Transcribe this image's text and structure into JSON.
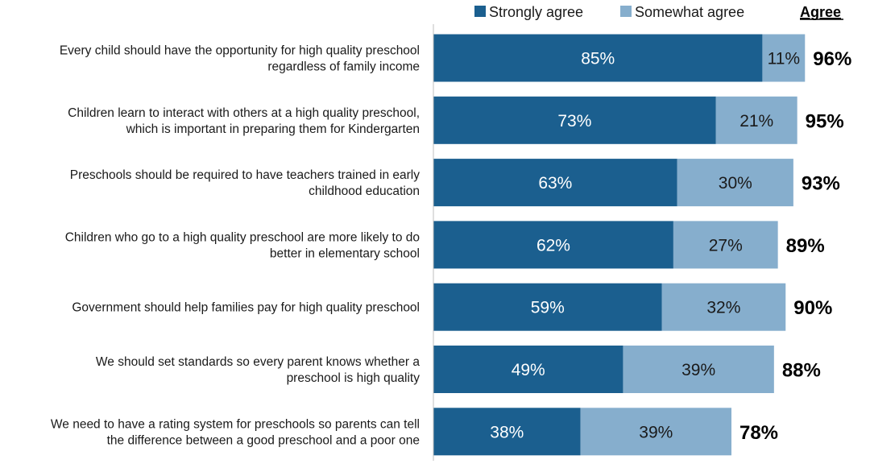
{
  "chart_data": {
    "type": "bar",
    "orientation": "horizontal",
    "stacked": true,
    "categories": [
      [
        "Every child should have the opportunity for high quality preschool",
        "regardless of family income"
      ],
      [
        "Children learn to interact with others at a high quality preschool,",
        "which is important in preparing them for Kindergarten"
      ],
      [
        "Preschools should be required to have teachers trained in early",
        "childhood education"
      ],
      [
        "Children who go to a high quality preschool are more likely to do",
        "better in elementary school"
      ],
      [
        "Government should help families pay for high quality preschool"
      ],
      [
        "We should set standards so every parent knows whether a",
        "preschool is high quality"
      ],
      [
        "We need to have a rating system for preschools so parents can tell",
        "the difference between a good preschool and a poor one"
      ]
    ],
    "series": [
      {
        "name": "Strongly agree",
        "color": "#1b5f8f",
        "label_color": "#ffffff",
        "values": [
          85,
          73,
          63,
          62,
          59,
          49,
          38
        ]
      },
      {
        "name": "Somewhat agree",
        "color": "#86aecd",
        "label_color": "#1a1a1a",
        "values": [
          11,
          21,
          30,
          27,
          32,
          39,
          39
        ]
      }
    ],
    "totals_header": "Agree",
    "totals": [
      96,
      95,
      93,
      89,
      90,
      88,
      78
    ],
    "value_suffix": "%",
    "xlim": [
      0,
      100
    ],
    "grid": false,
    "legend_position": "top-right"
  }
}
